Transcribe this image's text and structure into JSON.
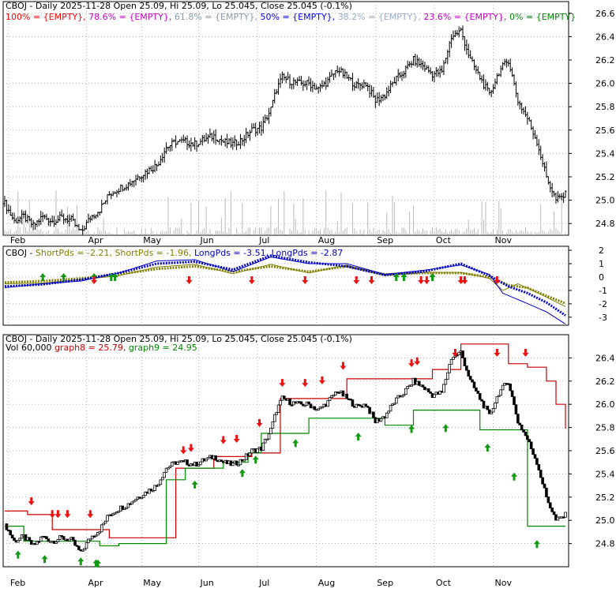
{
  "colors": {
    "background": "#ffffff",
    "frame": "#000000",
    "grid": "#999999",
    "red": "#ff0000",
    "magenta": "#cc00cc",
    "gray_blue": "#8899aa",
    "blue": "#0000ff",
    "light_blue": "#99aacc",
    "green": "#008800",
    "olive": "#808000",
    "dark_blue": "#0000cc",
    "volume": "#bbbbbb",
    "resistance": "#cc0000",
    "support": "#008800",
    "up_arrow": "#119911",
    "down_arrow": "#ee1111"
  },
  "panel1": {
    "title": "CBOJ - Daily 2025-11-28 Open 25.09, Hi 25.09, Lo 25.045, Close 25.045 (-0.1%)",
    "fib_legend": [
      {
        "text": "100% = {EMPTY},",
        "color": "#ff0000"
      },
      {
        "text": "78.6% = {EMPTY},",
        "color": "#cc00cc"
      },
      {
        "text": "61.8% = {EMPTY},",
        "color": "#8899aa"
      },
      {
        "text": "50% = {EMPTY},",
        "color": "#0000ff"
      },
      {
        "text": "38.2% = {EMPTY},",
        "color": "#99aacc"
      },
      {
        "text": "23.6% = {EMPTY},",
        "color": "#cc00cc"
      },
      {
        "text": "0% = {EMPTY}",
        "color": "#008800"
      }
    ]
  },
  "panel2": {
    "legend": [
      {
        "text": "CBOJ -",
        "color": "#000000"
      },
      {
        "text": "ShortPds = -2.21,",
        "color": "#808000"
      },
      {
        "text": "ShortPds = -1.96,",
        "color": "#808000"
      },
      {
        "text": "LongPds = -3.51,",
        "color": "#0000cc"
      },
      {
        "text": "LongPds = -2.87",
        "color": "#0000cc"
      }
    ]
  },
  "panel3": {
    "title": "CBOJ - Daily 2025-11-28 Open 25.09, Hi 25.09, Lo 25.045, Close 25.045 (-0.1%)",
    "legend": [
      {
        "text": "Vol 60,000",
        "color": "#000000"
      },
      {
        "text": "graph8 = 25.79,",
        "color": "#cc0000"
      },
      {
        "text": "graph9 = 24.95",
        "color": "#008800"
      }
    ]
  },
  "chart_data": [
    {
      "type": "ohlc",
      "title": "CBOJ - Daily 2025-11-28 Open 25.09, Hi 25.09, Lo 25.045, Close 25.045 (-0.1%)",
      "x_tick_labels": [
        "Feb",
        "Apr",
        "May",
        "Jun",
        "Jul",
        "Aug",
        "Sep",
        "Oct",
        "Nov"
      ],
      "y_tick_labels": [
        "24.8",
        "25.0",
        "25.2",
        "25.4",
        "25.6",
        "25.8",
        "26.0",
        "26.2",
        "26.4",
        "26.6"
      ],
      "ylim": [
        24.7,
        26.7
      ],
      "grid": true,
      "close_anchors": [
        [
          0,
          24.97
        ],
        [
          5,
          24.82
        ],
        [
          10,
          24.86
        ],
        [
          15,
          24.78
        ],
        [
          20,
          24.86
        ],
        [
          25,
          24.82
        ],
        [
          30,
          24.85
        ],
        [
          35,
          24.83
        ],
        [
          40,
          24.72
        ],
        [
          45,
          24.85
        ],
        [
          50,
          24.92
        ],
        [
          55,
          25.05
        ],
        [
          60,
          25.1
        ],
        [
          65,
          25.14
        ],
        [
          70,
          25.2
        ],
        [
          75,
          25.25
        ],
        [
          80,
          25.3
        ],
        [
          85,
          25.45
        ],
        [
          90,
          25.5
        ],
        [
          95,
          25.5
        ],
        [
          100,
          25.48
        ],
        [
          105,
          25.52
        ],
        [
          110,
          25.55
        ],
        [
          115,
          25.5
        ],
        [
          120,
          25.48
        ],
        [
          125,
          25.52
        ],
        [
          130,
          25.6
        ],
        [
          135,
          25.62
        ],
        [
          140,
          25.78
        ],
        [
          143,
          25.95
        ],
        [
          146,
          26.05
        ],
        [
          150,
          26.02
        ],
        [
          155,
          26.0
        ],
        [
          160,
          26.0
        ],
        [
          165,
          25.95
        ],
        [
          170,
          26.02
        ],
        [
          175,
          26.12
        ],
        [
          180,
          26.05
        ],
        [
          185,
          25.98
        ],
        [
          190,
          26.0
        ],
        [
          195,
          25.85
        ],
        [
          200,
          25.9
        ],
        [
          205,
          26.02
        ],
        [
          210,
          26.1
        ],
        [
          215,
          26.2
        ],
        [
          220,
          26.15
        ],
        [
          225,
          26.08
        ],
        [
          230,
          26.1
        ],
        [
          235,
          26.4
        ],
        [
          240,
          26.45
        ],
        [
          245,
          26.2
        ],
        [
          250,
          26.05
        ],
        [
          255,
          25.9
        ],
        [
          260,
          26.1
        ],
        [
          265,
          26.2
        ],
        [
          270,
          25.85
        ],
        [
          275,
          25.7
        ],
        [
          280,
          25.5
        ],
        [
          285,
          25.2
        ],
        [
          290,
          25.0
        ],
        [
          295,
          25.045
        ]
      ]
    },
    {
      "type": "line",
      "y_tick_labels": [
        "2",
        "1",
        "0",
        "-1",
        "-2",
        "-3"
      ],
      "ylim": [
        -3.6,
        2.3
      ],
      "series": [
        {
          "name": "ShortPds",
          "values": [
            [
              0,
              -0.5
            ],
            [
              20,
              -0.45
            ],
            [
              40,
              -0.2
            ],
            [
              60,
              0.1
            ],
            [
              80,
              0.75
            ],
            [
              100,
              0.95
            ],
            [
              120,
              0.25
            ],
            [
              140,
              0.95
            ],
            [
              160,
              0.3
            ],
            [
              180,
              0.9
            ],
            [
              200,
              0.1
            ],
            [
              220,
              0.35
            ],
            [
              240,
              0.35
            ],
            [
              255,
              -0.1
            ],
            [
              262,
              -1.0
            ],
            [
              270,
              -0.5
            ],
            [
              285,
              -1.5
            ],
            [
              295,
              -2.21
            ]
          ]
        },
        {
          "name": "ShortPds",
          "values": [
            [
              0,
              -0.4
            ],
            [
              20,
              -0.3
            ],
            [
              40,
              -0.1
            ],
            [
              60,
              0.2
            ],
            [
              80,
              0.6
            ],
            [
              100,
              0.8
            ],
            [
              120,
              0.4
            ],
            [
              140,
              0.8
            ],
            [
              160,
              0.4
            ],
            [
              180,
              0.8
            ],
            [
              200,
              0.2
            ],
            [
              220,
              0.3
            ],
            [
              240,
              0.3
            ],
            [
              255,
              0.0
            ],
            [
              265,
              -0.6
            ],
            [
              275,
              -0.8
            ],
            [
              285,
              -1.4
            ],
            [
              295,
              -1.96
            ]
          ]
        },
        {
          "name": "LongPds",
          "values": [
            [
              0,
              -0.8
            ],
            [
              20,
              -0.5
            ],
            [
              40,
              -0.3
            ],
            [
              60,
              0.3
            ],
            [
              80,
              1.2
            ],
            [
              100,
              1.3
            ],
            [
              120,
              0.4
            ],
            [
              140,
              1.5
            ],
            [
              160,
              1.0
            ],
            [
              180,
              1.0
            ],
            [
              200,
              0.2
            ],
            [
              220,
              0.5
            ],
            [
              240,
              0.9
            ],
            [
              255,
              0.2
            ],
            [
              262,
              -1.2
            ],
            [
              272,
              -1.8
            ],
            [
              285,
              -2.6
            ],
            [
              295,
              -3.51
            ]
          ]
        },
        {
          "name": "LongPds",
          "values": [
            [
              0,
              -0.7
            ],
            [
              20,
              -0.55
            ],
            [
              40,
              -0.2
            ],
            [
              60,
              0.3
            ],
            [
              80,
              1.0
            ],
            [
              100,
              1.15
            ],
            [
              120,
              0.55
            ],
            [
              140,
              1.6
            ],
            [
              160,
              1.1
            ],
            [
              180,
              0.8
            ],
            [
              200,
              0.15
            ],
            [
              220,
              0.4
            ],
            [
              240,
              1.0
            ],
            [
              255,
              0.1
            ],
            [
              265,
              -0.7
            ],
            [
              275,
              -1.2
            ],
            [
              285,
              -1.9
            ],
            [
              295,
              -2.87
            ]
          ]
        }
      ]
    },
    {
      "type": "line_break_with_bands",
      "title": "CBOJ - Daily 2025-11-28 Open 25.09, Hi 25.09, Lo 25.045, Close 25.045 (-0.1%)",
      "x_tick_labels": [
        "Feb",
        "Apr",
        "May",
        "Jun",
        "Jul",
        "Aug",
        "Sep",
        "Oct",
        "Nov"
      ],
      "y_tick_labels": [
        "24.8",
        "25.0",
        "25.2",
        "25.4",
        "25.6",
        "25.8",
        "26.0",
        "26.2",
        "26.4"
      ],
      "ylim": [
        24.6,
        26.6
      ],
      "series": [
        {
          "name": "graph8",
          "values": [
            [
              0,
              25.08
            ],
            [
              12,
              25.05
            ],
            [
              25,
              24.92
            ],
            [
              45,
              24.92
            ],
            [
              55,
              24.85
            ],
            [
              70,
              24.85
            ],
            [
              90,
              25.45
            ],
            [
              110,
              25.55
            ],
            [
              130,
              25.58
            ],
            [
              145,
              26.05
            ],
            [
              165,
              26.05
            ],
            [
              180,
              26.22
            ],
            [
              200,
              26.22
            ],
            [
              215,
              26.22
            ],
            [
              225,
              26.3
            ],
            [
              240,
              26.52
            ],
            [
              258,
              26.52
            ],
            [
              265,
              26.35
            ],
            [
              275,
              26.32
            ],
            [
              285,
              26.2
            ],
            [
              290,
              26.0
            ],
            [
              295,
              25.79
            ]
          ]
        },
        {
          "name": "graph9",
          "values": [
            [
              0,
              24.95
            ],
            [
              10,
              24.82
            ],
            [
              30,
              24.82
            ],
            [
              50,
              24.78
            ],
            [
              60,
              24.8
            ],
            [
              75,
              24.8
            ],
            [
              85,
              25.35
            ],
            [
              95,
              25.45
            ],
            [
              115,
              25.5
            ],
            [
              128,
              25.58
            ],
            [
              135,
              25.75
            ],
            [
              145,
              25.75
            ],
            [
              160,
              25.88
            ],
            [
              185,
              25.88
            ],
            [
              200,
              25.82
            ],
            [
              215,
              25.95
            ],
            [
              235,
              25.95
            ],
            [
              250,
              25.78
            ],
            [
              265,
              25.78
            ],
            [
              275,
              24.95
            ],
            [
              295,
              24.95
            ]
          ]
        }
      ]
    }
  ]
}
